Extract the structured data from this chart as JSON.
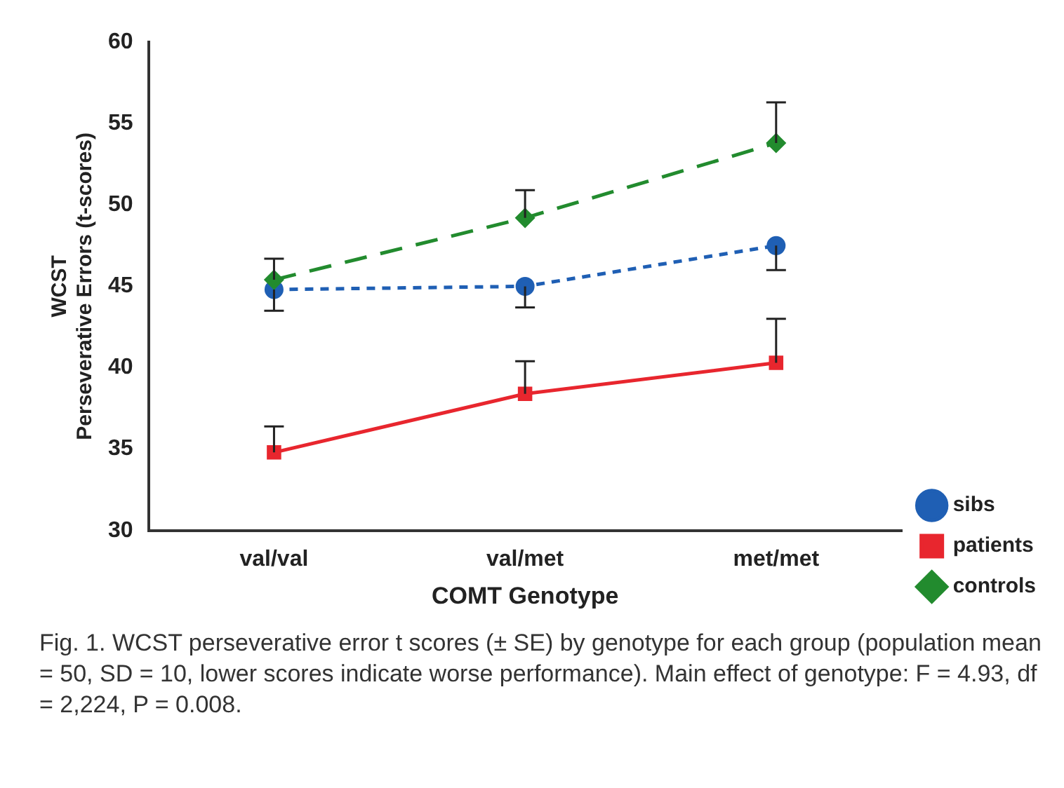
{
  "chart_data": {
    "type": "line",
    "xlabel": "COMT Genotype",
    "ylabel": "WCST\nPerseverative Errors (t-scores)",
    "categories": [
      "val/val",
      "val/met",
      "met/met"
    ],
    "ylim": [
      30,
      60
    ],
    "yticks": [
      30,
      35,
      40,
      45,
      50,
      55,
      60
    ],
    "grid": false,
    "legend": "bottom right",
    "series": [
      {
        "name": "sibs",
        "color": "#1f5fb4",
        "values": [
          44.8,
          45.0,
          47.5
        ],
        "errors": [
          [
            43.5,
            44.8
          ],
          [
            43.7,
            45.0
          ],
          [
            46.0,
            47.5
          ]
        ],
        "marker": "circle",
        "line_style": "dotted"
      },
      {
        "name": "patients",
        "color": "#e8262e",
        "values": [
          34.8,
          38.4,
          40.3
        ],
        "errors": [
          [
            34.8,
            36.4
          ],
          [
            38.4,
            40.4
          ],
          [
            40.3,
            43.0
          ]
        ],
        "marker": "square",
        "line_style": "solid"
      },
      {
        "name": "controls",
        "color": "#228b2e",
        "values": [
          45.4,
          49.2,
          53.8
        ],
        "errors": [
          [
            45.4,
            46.7
          ],
          [
            49.2,
            50.9
          ],
          [
            53.8,
            56.3
          ]
        ],
        "marker": "diamond",
        "line_style": "dashed"
      }
    ],
    "annotations": [
      "Fig. 1.    WCST perseverative error t scores (± SE) by genotype for each group (population mean = 50, SD = 10, lower scores indicate worse performance). Main effect of genotype: F = 4.93, df = 2,224, P = 0.008."
    ]
  }
}
